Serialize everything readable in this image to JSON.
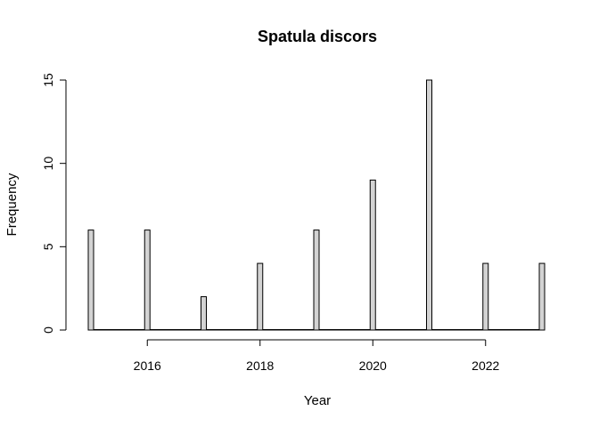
{
  "chart_data": {
    "type": "bar",
    "title": "Spatula discors",
    "xlabel": "Year",
    "ylabel": "Frequency",
    "x": [
      2015,
      2016,
      2017,
      2018,
      2019,
      2020,
      2021,
      2022,
      2023
    ],
    "values": [
      6,
      6,
      2,
      4,
      6,
      9,
      15,
      4,
      4
    ],
    "xlim": [
      2015,
      2023
    ],
    "ylim": [
      0,
      15
    ],
    "x_ticks": [
      "2016",
      "2018",
      "2020",
      "2022"
    ],
    "y_ticks": [
      "0",
      "5",
      "10",
      "15"
    ],
    "bar_color": "#d3d3d3",
    "grid": false
  }
}
